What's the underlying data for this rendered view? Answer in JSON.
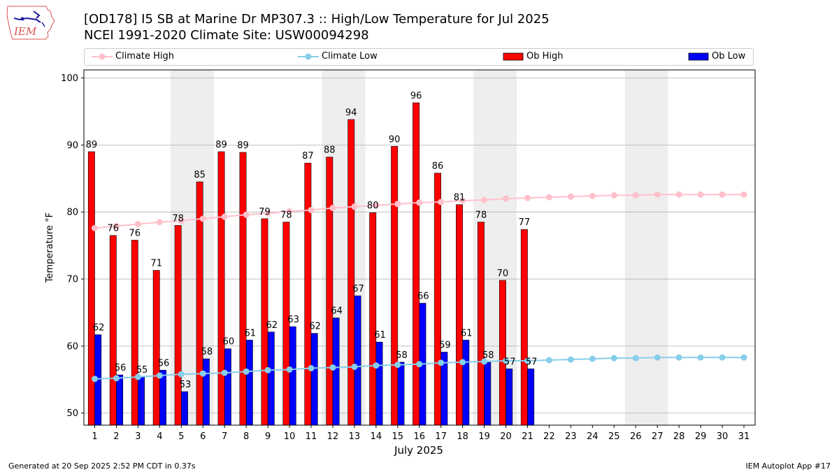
{
  "header": {
    "title_line1": "[OD178] I5 SB at Marine Dr MP307.3  :: High/Low Temperature for Jul 2025",
    "title_line2": "NCEI 1991-2020 Climate Site: USW00094298"
  },
  "logo": {
    "text": "IEM"
  },
  "footer": {
    "left": "Generated at 20 Sep 2025 2:52 PM CDT in 0.37s",
    "right": "IEM Autoplot App #17"
  },
  "colors": {
    "ob_high": "#ff0000",
    "ob_low": "#0000ff",
    "climate_high": "#ffc0cb",
    "climate_low": "#87ceeb",
    "weekend_band": "#eeeeee",
    "grid": "#b0b0b0"
  },
  "chart_data": {
    "type": "bar",
    "xlabel": "July 2025",
    "ylabel": "Temperature °F",
    "ylim": [
      48.2,
      101.2
    ],
    "yticks": [
      50,
      60,
      70,
      80,
      90,
      100
    ],
    "grid": "horizontal",
    "legend_position": "top",
    "categories": [
      "1",
      "2",
      "3",
      "4",
      "5",
      "6",
      "7",
      "8",
      "9",
      "10",
      "11",
      "12",
      "13",
      "14",
      "15",
      "16",
      "17",
      "18",
      "19",
      "20",
      "21",
      "22",
      "23",
      "24",
      "25",
      "26",
      "27",
      "28",
      "29",
      "30",
      "31"
    ],
    "shaded_days": [
      [
        5,
        6
      ],
      [
        12,
        13
      ],
      [
        19,
        20
      ],
      [
        26,
        27
      ]
    ],
    "series": [
      {
        "name": "Ob High",
        "kind": "bar",
        "values": [
          89,
          76.5,
          75.8,
          71.3,
          78,
          84.5,
          89,
          88.9,
          79,
          78.5,
          87.3,
          88.2,
          93.8,
          79.9,
          89.8,
          96.3,
          85.8,
          81.1,
          78.5,
          69.8,
          77.4,
          null,
          null,
          null,
          null,
          null,
          null,
          null,
          null,
          null,
          null
        ],
        "labels": [
          "89",
          "76",
          "76",
          "71",
          "78",
          "85",
          "89",
          "89",
          "79",
          "78",
          "87",
          "88",
          "94",
          "80",
          "90",
          "96",
          "86",
          "81",
          "78",
          "70",
          "77",
          "",
          "",
          "",
          "",
          "",
          "",
          "",
          "",
          "",
          ""
        ]
      },
      {
        "name": "Ob Low",
        "kind": "bar",
        "values": [
          61.7,
          55.7,
          55.4,
          56.4,
          53.2,
          58.1,
          59.6,
          60.9,
          62.1,
          62.9,
          61.9,
          64.2,
          67.5,
          60.6,
          57.6,
          66.4,
          59.1,
          60.9,
          57.6,
          56.6,
          56.6,
          null,
          null,
          null,
          null,
          null,
          null,
          null,
          null,
          null,
          null
        ],
        "labels": [
          "62",
          "56",
          "55",
          "56",
          "53",
          "58",
          "60",
          "61",
          "62",
          "63",
          "62",
          "64",
          "67",
          "61",
          "58",
          "66",
          "59",
          "61",
          "58",
          "57",
          "57",
          "",
          "",
          "",
          "",
          "",
          "",
          "",
          "",
          "",
          ""
        ]
      },
      {
        "name": "Climate High",
        "kind": "line",
        "values": [
          77.6,
          77.9,
          78.2,
          78.5,
          78.7,
          79.0,
          79.3,
          79.6,
          79.8,
          80.1,
          80.3,
          80.6,
          80.8,
          81.0,
          81.2,
          81.4,
          81.5,
          81.7,
          81.8,
          82.0,
          82.1,
          82.2,
          82.3,
          82.4,
          82.5,
          82.5,
          82.6,
          82.6,
          82.6,
          82.6,
          82.6
        ]
      },
      {
        "name": "Climate Low",
        "kind": "line",
        "values": [
          55.1,
          55.2,
          55.4,
          55.6,
          55.8,
          55.9,
          56.0,
          56.2,
          56.4,
          56.5,
          56.7,
          56.8,
          56.9,
          57.1,
          57.2,
          57.3,
          57.5,
          57.6,
          57.7,
          57.8,
          57.8,
          57.9,
          58.0,
          58.1,
          58.2,
          58.2,
          58.3,
          58.3,
          58.3,
          58.3,
          58.3
        ]
      }
    ]
  }
}
